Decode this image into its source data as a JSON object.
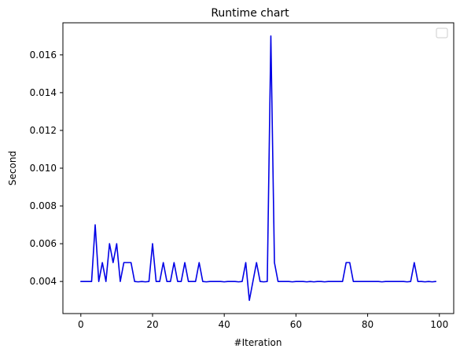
{
  "chart_data": {
    "type": "line",
    "title": "Runtime chart",
    "xlabel": "#Iteration",
    "ylabel": "Second",
    "xlim": [
      -5.0,
      104.0
    ],
    "ylim": [
      0.0023,
      0.0177
    ],
    "xticks": [
      0,
      20,
      40,
      60,
      80,
      100
    ],
    "xtick_labels": [
      "0",
      "20",
      "40",
      "60",
      "80",
      "100"
    ],
    "yticks": [
      0.004,
      0.006,
      0.008,
      0.01,
      0.012,
      0.014,
      0.016
    ],
    "ytick_labels": [
      "0.004",
      "0.006",
      "0.008",
      "0.010",
      "0.012",
      "0.014",
      "0.016"
    ],
    "grid": false,
    "legend": {
      "placement": "top-right",
      "entries": []
    },
    "series": [
      {
        "color": "#0000e6",
        "x": [
          0,
          1,
          2,
          3,
          4,
          5,
          6,
          7,
          8,
          9,
          10,
          11,
          12,
          13,
          14,
          15,
          16,
          17,
          18,
          19,
          20,
          21,
          22,
          23,
          24,
          25,
          26,
          27,
          28,
          29,
          30,
          31,
          32,
          33,
          34,
          35,
          36,
          37,
          38,
          39,
          40,
          41,
          42,
          43,
          44,
          45,
          46,
          47,
          48,
          49,
          50,
          51,
          52,
          53,
          54,
          55,
          56,
          57,
          58,
          59,
          60,
          61,
          62,
          63,
          64,
          65,
          66,
          67,
          68,
          69,
          70,
          71,
          72,
          73,
          74,
          75,
          76,
          77,
          78,
          79,
          80,
          81,
          82,
          83,
          84,
          85,
          86,
          87,
          88,
          89,
          90,
          91,
          92,
          93,
          94,
          95,
          96,
          97,
          98,
          99
        ],
        "y": [
          0.004,
          0.004,
          0.004,
          0.004,
          0.007,
          0.004,
          0.005,
          0.004,
          0.006,
          0.005,
          0.006,
          0.004,
          0.005,
          0.005,
          0.005,
          0.004,
          0.00398,
          0.004,
          0.00398,
          0.004,
          0.006,
          0.004,
          0.004,
          0.005,
          0.004,
          0.004,
          0.005,
          0.004,
          0.004,
          0.005,
          0.004,
          0.004,
          0.004,
          0.005,
          0.004,
          0.00398,
          0.004,
          0.004,
          0.004,
          0.004,
          0.00398,
          0.004,
          0.004,
          0.004,
          0.00398,
          0.004,
          0.005,
          0.003,
          0.004,
          0.005,
          0.004,
          0.00398,
          0.004,
          0.017,
          0.005,
          0.004,
          0.004,
          0.004,
          0.004,
          0.00398,
          0.004,
          0.004,
          0.004,
          0.00398,
          0.004,
          0.00398,
          0.004,
          0.004,
          0.00398,
          0.004,
          0.004,
          0.004,
          0.004,
          0.004,
          0.005,
          0.005,
          0.004,
          0.004,
          0.004,
          0.004,
          0.004,
          0.004,
          0.004,
          0.004,
          0.00398,
          0.004,
          0.004,
          0.004,
          0.004,
          0.004,
          0.004,
          0.00398,
          0.004,
          0.005,
          0.004,
          0.004,
          0.00398,
          0.004,
          0.00398,
          0.004
        ]
      }
    ]
  }
}
